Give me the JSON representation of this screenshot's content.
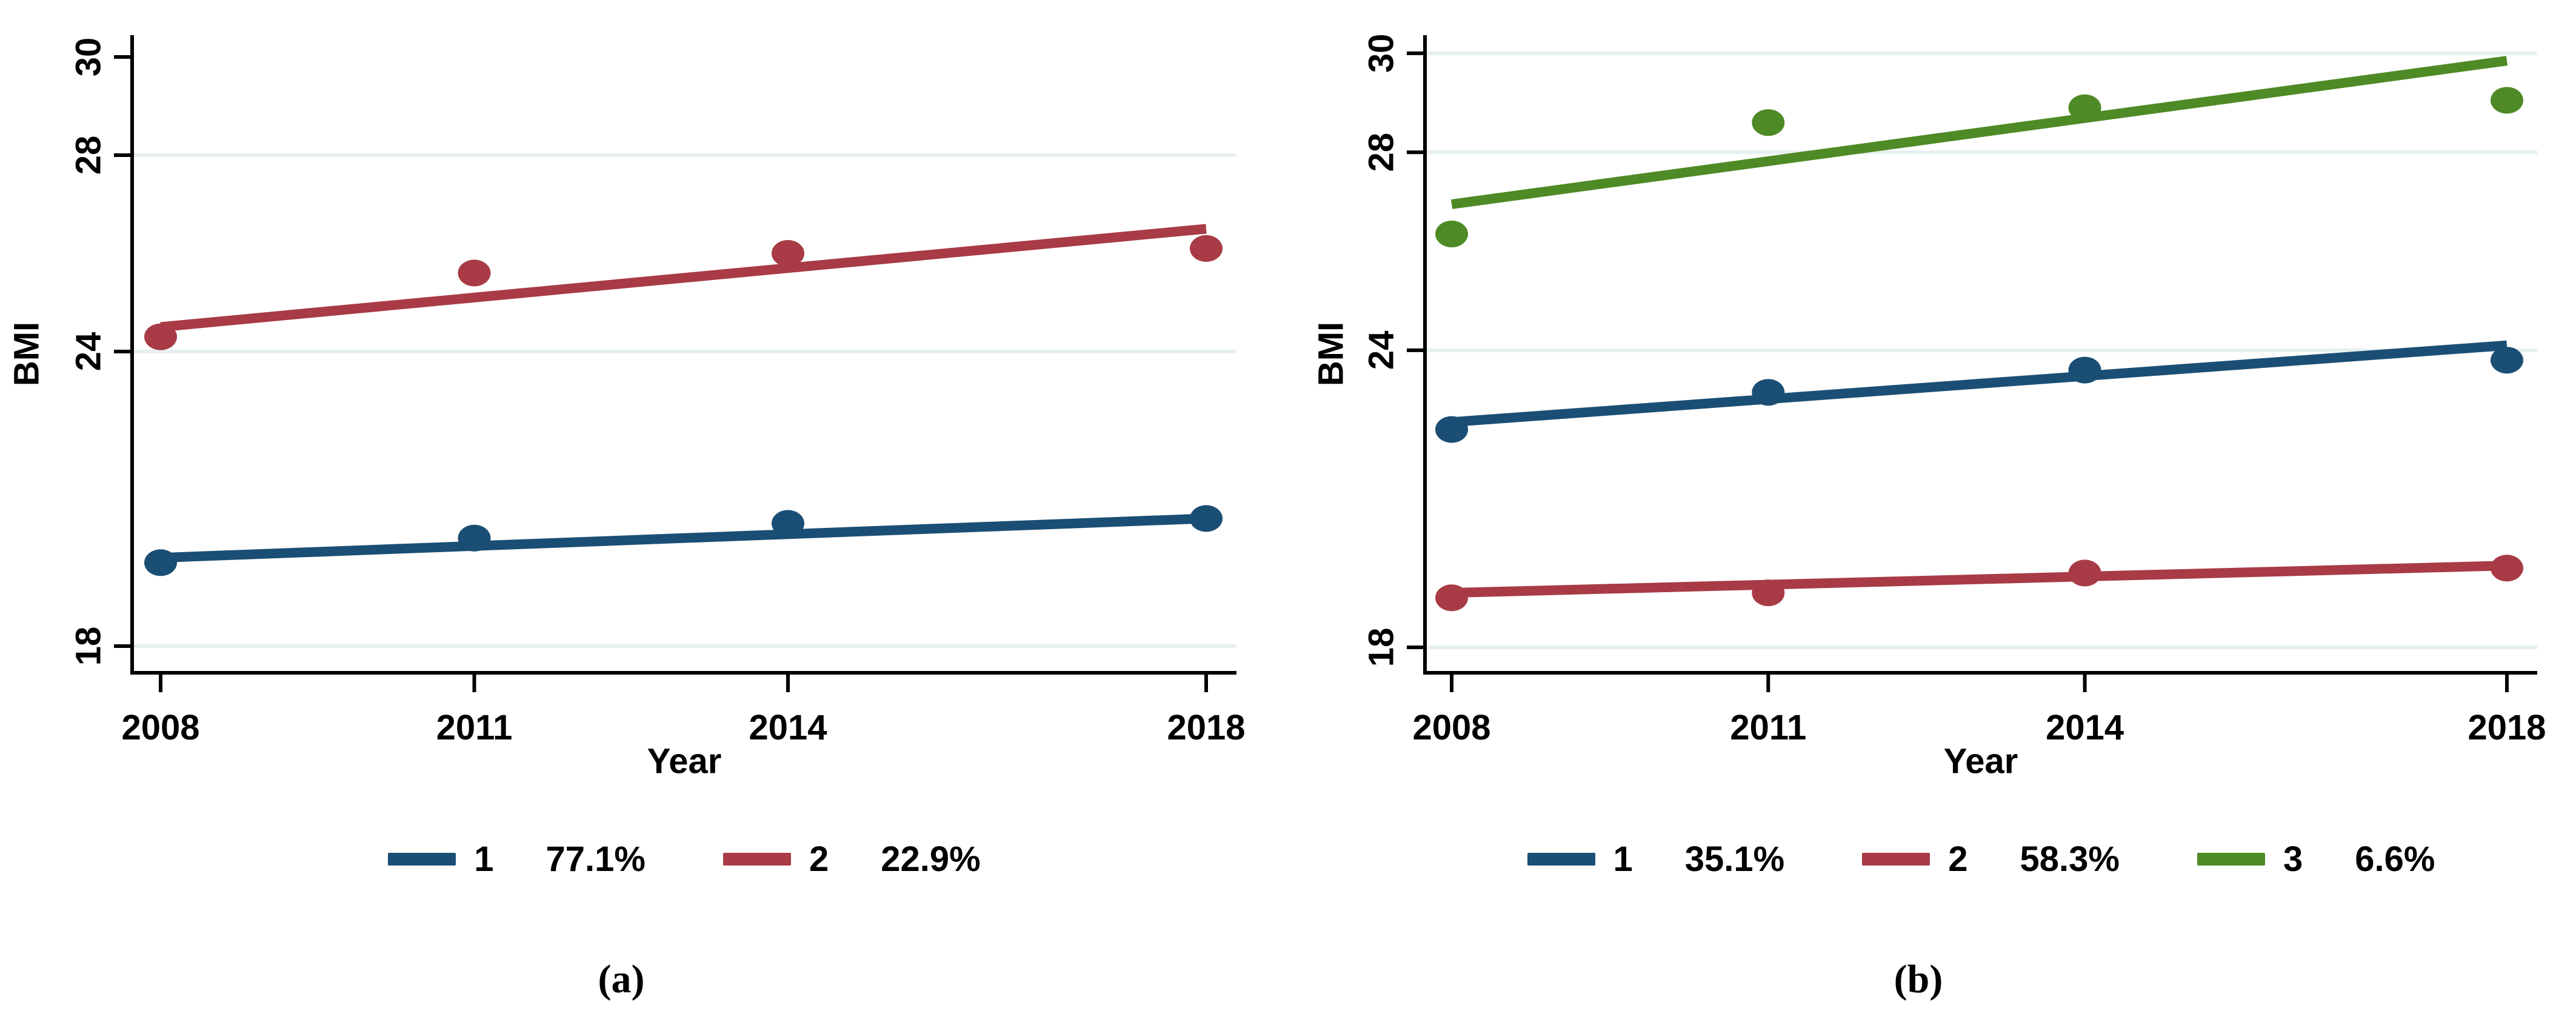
{
  "figure": {
    "background": "#ffffff",
    "caption_a": "(a)",
    "caption_b": "(b)"
  },
  "colors": {
    "group1": "#1b4e74",
    "group2": "#a83b46",
    "group3": "#4e8a25",
    "gridline": "#e7f0f0",
    "axis": "#000000",
    "text": "#000000"
  },
  "chart_data": [
    {
      "id": "a",
      "type": "line",
      "title": "",
      "xlabel": "Year",
      "ylabel": "BMI",
      "x_ticks": [
        "2008",
        "2011",
        "2014",
        "2018"
      ],
      "x_tick_years": [
        2008,
        2011,
        2014,
        2018
      ],
      "y_ticks": [
        18,
        24,
        28,
        30
      ],
      "gridlines": [
        18,
        24,
        28
      ],
      "xlim": [
        2007.7,
        2018.3
      ],
      "ylim": [
        17.5,
        30.4
      ],
      "grid": "horizontal-only",
      "legend_position": "bottom-center",
      "series": [
        {
          "name": "1",
          "percent": "77.1%",
          "color_key": "group1",
          "dots": {
            "x": [
              2008,
              2011,
              2014,
              2018
            ],
            "y": [
              19.7,
              20.2,
              20.5,
              20.6
            ]
          },
          "fit_line": {
            "x": [
              2008,
              2018
            ],
            "y": [
              19.8,
              20.6
            ]
          }
        },
        {
          "name": "2",
          "percent": "22.9%",
          "color_key": "group2",
          "dots": {
            "x": [
              2008,
              2011,
              2014,
              2018
            ],
            "y": [
              24.3,
              25.6,
              26.0,
              26.1
            ]
          },
          "fit_line": {
            "x": [
              2008,
              2018
            ],
            "y": [
              24.5,
              26.5
            ]
          }
        }
      ]
    },
    {
      "id": "b",
      "type": "line",
      "title": "",
      "xlabel": "Year",
      "ylabel": "BMI",
      "x_ticks": [
        "2008",
        "2011",
        "2014",
        "2018"
      ],
      "x_tick_years": [
        2008,
        2011,
        2014,
        2018
      ],
      "y_ticks": [
        18,
        24,
        28,
        30
      ],
      "gridlines": [
        18,
        24,
        28,
        30
      ],
      "xlim": [
        2007.75,
        2018.3
      ],
      "ylim": [
        17.5,
        30.5
      ],
      "grid": "horizontal-only",
      "legend_position": "bottom-center",
      "series": [
        {
          "name": "1",
          "percent": "35.1%",
          "color_key": "group1",
          "dots": {
            "x": [
              2008,
              2011,
              2014,
              2018
            ],
            "y": [
              22.4,
              23.15,
              23.6,
              23.8
            ]
          },
          "fit_line": {
            "x": [
              2008,
              2018
            ],
            "y": [
              22.55,
              24.1
            ]
          }
        },
        {
          "name": "2",
          "percent": "58.3%",
          "color_key": "group2",
          "dots": {
            "x": [
              2008,
              2011,
              2014,
              2018
            ],
            "y": [
              19.0,
              19.1,
              19.5,
              19.6
            ]
          },
          "fit_line": {
            "x": [
              2008,
              2018
            ],
            "y": [
              19.1,
              19.65
            ]
          }
        },
        {
          "name": "3",
          "percent": "6.6%",
          "color_key": "group3",
          "dots": {
            "x": [
              2008,
              2011,
              2014,
              2018
            ],
            "y": [
              26.35,
              28.6,
              28.9,
              29.05
            ]
          },
          "fit_line": {
            "x": [
              2008,
              2018
            ],
            "y": [
              26.95,
              29.85
            ]
          }
        }
      ]
    }
  ]
}
